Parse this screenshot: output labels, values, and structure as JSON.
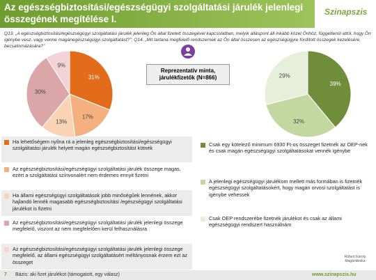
{
  "title": "Az egészségbiztosítási/egészségügyi szolgáltatási járulék jelenlegi összegének megítélése I.",
  "logo": "Szinapszis",
  "question": "Q13. „A egészségbiztosítási/egészségügyi szolgáltatási járulék jelenleg Ön által fizetett összegével kapcsolatban, melyik álláspont áll inkább közel Önhöz, függetlenül attól, hogy Ön igénybe vesz, vagy venne magánegészségügyi szolgáltatást?”; Q14. „Mit tartana megfelelő rendszernek az Ön által összesen az egészségügyre fordított összegek kezelésére, becsatornázására?”",
  "badge": "Reprezentatív minta, járulékfizetők (N=866)",
  "footer": {
    "page": "7",
    "base": "Bázis: aki fizet járulékot (támogatott, egy válasz)",
    "web": "www.szinapszis.hu",
    "partner": "Róbert Károly Magánklinika"
  },
  "chart_data": [
    {
      "type": "pie",
      "categories": [
        "Ha lehetőségem nyílna rá a jelenleg egészségbiztosítási/egészségügyi szolgáltatási járulék helyett magán egészségbiztosítást kötnék",
        "Az egészségbiztosítási/egészségügyi szolgáltatási járulék összege magas, ezért a szolgáltatási színvonalért nem érdemes ennyit fizetni",
        "Ha állami egészségügyi szolgáltatások jobb minőségűek lennének, akkor hajlandó lennék magasabb egészségbiztosítási /egészségügyi szolgáltatási járulékot is fizetni",
        "Az egészségbiztosítási/egészségügyi szolgáltatási járulék jelenlegi összege megfelelő, viszont az nem megfelelően kerül felhasználásra",
        "Az egészségbiztosítási/egészségügyi szolgáltatási járulék jelenlegi összege megfelelő, az állami egészségügyi szolgáltatásért méltányosnak érzem ezt az összeget"
      ],
      "values": [
        31,
        17,
        13,
        30,
        9
      ],
      "value_labels": [
        "31%",
        "17%",
        "13%",
        "30%",
        "9%"
      ],
      "colors": [
        "#e36c1b",
        "#f4b17f",
        "#fad3b4",
        "#dba6a8",
        "#f3d3d5"
      ]
    },
    {
      "type": "pie",
      "categories": [
        "Csak egy kötelező minimum 6930 Ft-os összeget fizetnék az OEP-nek és csak magán egészségügyi szolgáltatásokat vennék igénybe",
        "A jelenlegi egészségügyi járulékom mellett más formában is fizetnék egészségügyi szolgáltatásokért, hogy magán orvosi szolgáltatást is igénybe vehessek",
        "Csak OEP rendszerébe fizetnék járulékot és csak az állami egészségügyi rendszert használnám"
      ],
      "values": [
        39,
        32,
        29
      ],
      "value_labels": [
        "39%",
        "32%",
        "29%"
      ],
      "colors": [
        "#6f8d3a",
        "#c3d8a0",
        "#e7efda"
      ]
    }
  ]
}
